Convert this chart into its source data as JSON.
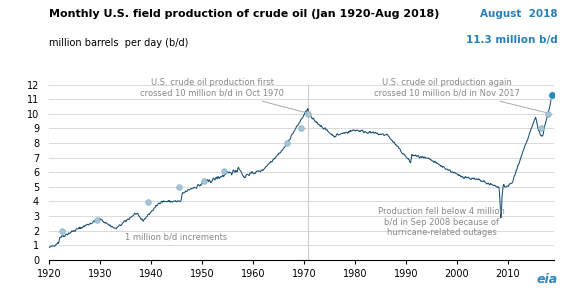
{
  "title": "Monthly U.S. field production of crude oil (Jan 1920-Aug 2018)",
  "ylabel": "million barrels  per day (b/d)",
  "line_color": "#1b4f72",
  "highlight_color": "#2e86c1",
  "annotation_color": "#888888",
  "august_label": "August  2018",
  "august_value": "11.3 million b/d",
  "august_color": "#2980b9",
  "xlim": [
    1920,
    2019
  ],
  "ylim": [
    0,
    12
  ],
  "yticks": [
    0,
    1,
    2,
    3,
    4,
    5,
    6,
    7,
    8,
    9,
    10,
    11,
    12
  ],
  "xticks": [
    1920,
    1930,
    1940,
    1950,
    1960,
    1970,
    1980,
    1990,
    2000,
    2010
  ],
  "milestone_color": "#a8c4d4",
  "milestone_edge": "#7fb0c8",
  "milestone_points": [
    {
      "year": 1922.5,
      "val": 2.0
    },
    {
      "year": 1929.5,
      "val": 2.75
    },
    {
      "year": 1939.5,
      "val": 3.95
    },
    {
      "year": 1945.5,
      "val": 5.0
    },
    {
      "year": 1950.5,
      "val": 5.4
    },
    {
      "year": 1954.3,
      "val": 6.1
    },
    {
      "year": 1966.7,
      "val": 8.0
    },
    {
      "year": 1969.5,
      "val": 9.0
    },
    {
      "year": 1970.8,
      "val": 10.0
    },
    {
      "year": 2016.5,
      "val": 9.0
    },
    {
      "year": 2017.9,
      "val": 10.0
    }
  ],
  "vline_year_1970": 1970.8,
  "background_color": "#ffffff",
  "grid_color": "#cccccc"
}
